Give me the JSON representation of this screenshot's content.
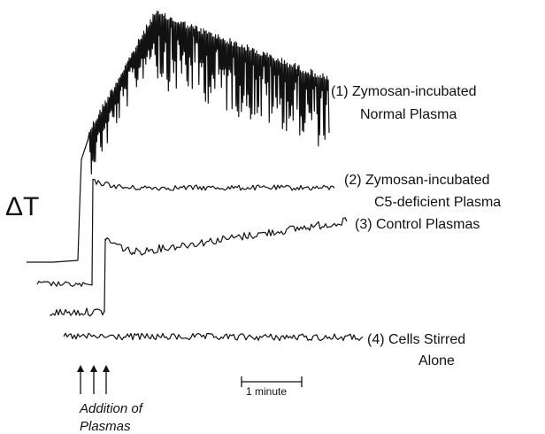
{
  "chart_data": {
    "type": "line",
    "ylabel": "ΔT",
    "scale_bar": {
      "label": "1 minute",
      "duration_min": 1
    },
    "annotation": {
      "line1": "Addition of",
      "line2": "Plasmas",
      "arrow_count": 3
    },
    "series": [
      {
        "name_line1": "(1) Zymosan-incubated",
        "name_line2": "Normal Plasma"
      },
      {
        "name_line1": "(2) Zymosan-incubated",
        "name_line2": "C5-deficient Plasma"
      },
      {
        "name_line1": "(3) Control Plasmas",
        "name_line2": ""
      },
      {
        "name_line1": "(4) Cells Stirred",
        "name_line2": "Alone"
      }
    ]
  }
}
